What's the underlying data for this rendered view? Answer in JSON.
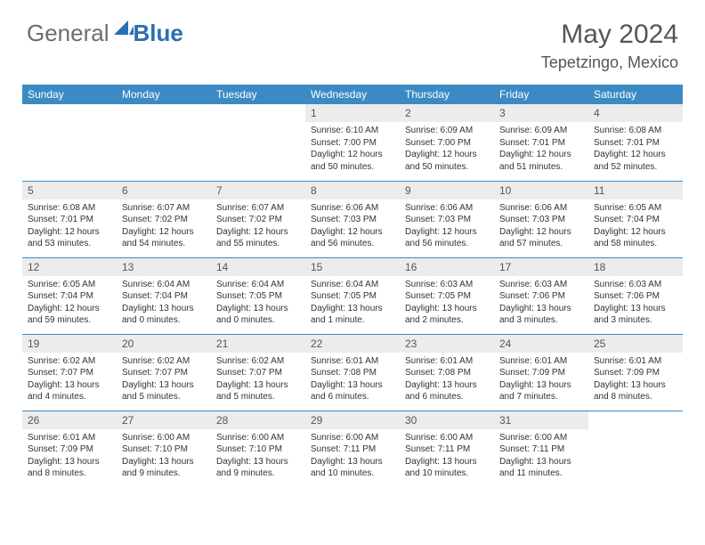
{
  "logo": {
    "general": "General",
    "blue": "Blue"
  },
  "title": "May 2024",
  "subtitle": "Tepetzingo, Mexico",
  "colors": {
    "header_bg": "#3b8ac4",
    "header_text": "#ffffff",
    "daynum_bg": "#ececec",
    "daynum_text": "#555555",
    "cell_border": "#3b8ac4",
    "body_text": "#333333",
    "logo_gray": "#6d6d6d",
    "logo_blue": "#2a6eb3",
    "page_bg": "#ffffff"
  },
  "day_headers": [
    "Sunday",
    "Monday",
    "Tuesday",
    "Wednesday",
    "Thursday",
    "Friday",
    "Saturday"
  ],
  "weeks": [
    [
      {
        "n": "",
        "r": "",
        "s": "",
        "d": ""
      },
      {
        "n": "",
        "r": "",
        "s": "",
        "d": ""
      },
      {
        "n": "",
        "r": "",
        "s": "",
        "d": ""
      },
      {
        "n": "1",
        "r": "Sunrise: 6:10 AM",
        "s": "Sunset: 7:00 PM",
        "d": "Daylight: 12 hours and 50 minutes."
      },
      {
        "n": "2",
        "r": "Sunrise: 6:09 AM",
        "s": "Sunset: 7:00 PM",
        "d": "Daylight: 12 hours and 50 minutes."
      },
      {
        "n": "3",
        "r": "Sunrise: 6:09 AM",
        "s": "Sunset: 7:01 PM",
        "d": "Daylight: 12 hours and 51 minutes."
      },
      {
        "n": "4",
        "r": "Sunrise: 6:08 AM",
        "s": "Sunset: 7:01 PM",
        "d": "Daylight: 12 hours and 52 minutes."
      }
    ],
    [
      {
        "n": "5",
        "r": "Sunrise: 6:08 AM",
        "s": "Sunset: 7:01 PM",
        "d": "Daylight: 12 hours and 53 minutes."
      },
      {
        "n": "6",
        "r": "Sunrise: 6:07 AM",
        "s": "Sunset: 7:02 PM",
        "d": "Daylight: 12 hours and 54 minutes."
      },
      {
        "n": "7",
        "r": "Sunrise: 6:07 AM",
        "s": "Sunset: 7:02 PM",
        "d": "Daylight: 12 hours and 55 minutes."
      },
      {
        "n": "8",
        "r": "Sunrise: 6:06 AM",
        "s": "Sunset: 7:03 PM",
        "d": "Daylight: 12 hours and 56 minutes."
      },
      {
        "n": "9",
        "r": "Sunrise: 6:06 AM",
        "s": "Sunset: 7:03 PM",
        "d": "Daylight: 12 hours and 56 minutes."
      },
      {
        "n": "10",
        "r": "Sunrise: 6:06 AM",
        "s": "Sunset: 7:03 PM",
        "d": "Daylight: 12 hours and 57 minutes."
      },
      {
        "n": "11",
        "r": "Sunrise: 6:05 AM",
        "s": "Sunset: 7:04 PM",
        "d": "Daylight: 12 hours and 58 minutes."
      }
    ],
    [
      {
        "n": "12",
        "r": "Sunrise: 6:05 AM",
        "s": "Sunset: 7:04 PM",
        "d": "Daylight: 12 hours and 59 minutes."
      },
      {
        "n": "13",
        "r": "Sunrise: 6:04 AM",
        "s": "Sunset: 7:04 PM",
        "d": "Daylight: 13 hours and 0 minutes."
      },
      {
        "n": "14",
        "r": "Sunrise: 6:04 AM",
        "s": "Sunset: 7:05 PM",
        "d": "Daylight: 13 hours and 0 minutes."
      },
      {
        "n": "15",
        "r": "Sunrise: 6:04 AM",
        "s": "Sunset: 7:05 PM",
        "d": "Daylight: 13 hours and 1 minute."
      },
      {
        "n": "16",
        "r": "Sunrise: 6:03 AM",
        "s": "Sunset: 7:05 PM",
        "d": "Daylight: 13 hours and 2 minutes."
      },
      {
        "n": "17",
        "r": "Sunrise: 6:03 AM",
        "s": "Sunset: 7:06 PM",
        "d": "Daylight: 13 hours and 3 minutes."
      },
      {
        "n": "18",
        "r": "Sunrise: 6:03 AM",
        "s": "Sunset: 7:06 PM",
        "d": "Daylight: 13 hours and 3 minutes."
      }
    ],
    [
      {
        "n": "19",
        "r": "Sunrise: 6:02 AM",
        "s": "Sunset: 7:07 PM",
        "d": "Daylight: 13 hours and 4 minutes."
      },
      {
        "n": "20",
        "r": "Sunrise: 6:02 AM",
        "s": "Sunset: 7:07 PM",
        "d": "Daylight: 13 hours and 5 minutes."
      },
      {
        "n": "21",
        "r": "Sunrise: 6:02 AM",
        "s": "Sunset: 7:07 PM",
        "d": "Daylight: 13 hours and 5 minutes."
      },
      {
        "n": "22",
        "r": "Sunrise: 6:01 AM",
        "s": "Sunset: 7:08 PM",
        "d": "Daylight: 13 hours and 6 minutes."
      },
      {
        "n": "23",
        "r": "Sunrise: 6:01 AM",
        "s": "Sunset: 7:08 PM",
        "d": "Daylight: 13 hours and 6 minutes."
      },
      {
        "n": "24",
        "r": "Sunrise: 6:01 AM",
        "s": "Sunset: 7:09 PM",
        "d": "Daylight: 13 hours and 7 minutes."
      },
      {
        "n": "25",
        "r": "Sunrise: 6:01 AM",
        "s": "Sunset: 7:09 PM",
        "d": "Daylight: 13 hours and 8 minutes."
      }
    ],
    [
      {
        "n": "26",
        "r": "Sunrise: 6:01 AM",
        "s": "Sunset: 7:09 PM",
        "d": "Daylight: 13 hours and 8 minutes."
      },
      {
        "n": "27",
        "r": "Sunrise: 6:00 AM",
        "s": "Sunset: 7:10 PM",
        "d": "Daylight: 13 hours and 9 minutes."
      },
      {
        "n": "28",
        "r": "Sunrise: 6:00 AM",
        "s": "Sunset: 7:10 PM",
        "d": "Daylight: 13 hours and 9 minutes."
      },
      {
        "n": "29",
        "r": "Sunrise: 6:00 AM",
        "s": "Sunset: 7:11 PM",
        "d": "Daylight: 13 hours and 10 minutes."
      },
      {
        "n": "30",
        "r": "Sunrise: 6:00 AM",
        "s": "Sunset: 7:11 PM",
        "d": "Daylight: 13 hours and 10 minutes."
      },
      {
        "n": "31",
        "r": "Sunrise: 6:00 AM",
        "s": "Sunset: 7:11 PM",
        "d": "Daylight: 13 hours and 11 minutes."
      },
      {
        "n": "",
        "r": "",
        "s": "",
        "d": ""
      }
    ]
  ]
}
